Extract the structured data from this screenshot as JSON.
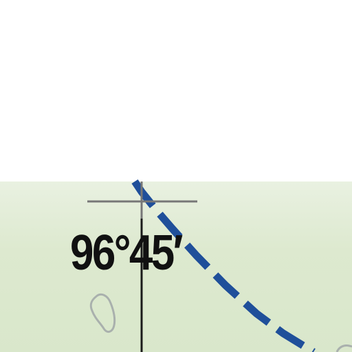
{
  "map": {
    "graticule": {
      "longitude_label": "96°45′"
    },
    "route": {
      "style": "dashed",
      "color": "#1f4f9a"
    },
    "land_color": "#dde9cf",
    "background_color": "#ffffff",
    "graticule_color": "#777777",
    "lake_outline_color": "#a9b0ad"
  }
}
